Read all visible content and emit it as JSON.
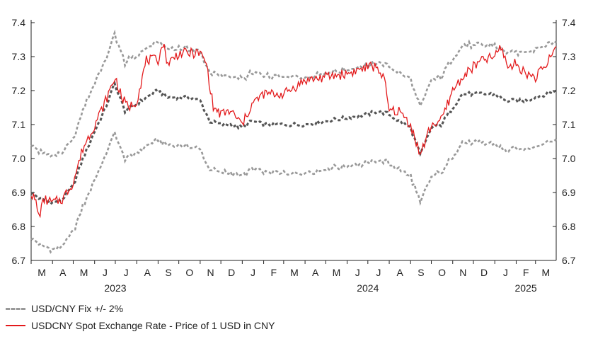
{
  "chart_data": {
    "type": "line",
    "title": "",
    "xlabel": "",
    "ylabel": "",
    "ylim": [
      6.7,
      7.4
    ],
    "y_ticks": [
      "6.7",
      "6.8",
      "6.9",
      "7.0",
      "7.1",
      "7.2",
      "7.3",
      "7.4"
    ],
    "x_range": [
      "2023-03-01",
      "2025-03-31"
    ],
    "month_labels": [
      "M",
      "A",
      "M",
      "J",
      "J",
      "A",
      "S",
      "O",
      "N",
      "D",
      "J",
      "F",
      "M",
      "A",
      "M",
      "J",
      "J",
      "A",
      "S",
      "O",
      "N",
      "D",
      "J",
      "F",
      "M"
    ],
    "year_labels": [
      {
        "label": "2023",
        "anchor": "2023-07-01"
      },
      {
        "label": "2024",
        "anchor": "2024-07-01"
      },
      {
        "label": "2025",
        "anchor": "2025-02-15"
      }
    ],
    "legend_position": "bottom-left",
    "grid": false,
    "series": [
      {
        "name": "USD/CNY Fix +/- 2%",
        "role": "band",
        "color": "#999999",
        "style": "dashed",
        "fix": [
          [
            "2023-03-01",
            6.9
          ],
          [
            "2023-03-15",
            6.88
          ],
          [
            "2023-04-01",
            6.87
          ],
          [
            "2023-04-15",
            6.88
          ],
          [
            "2023-05-01",
            6.92
          ],
          [
            "2023-05-15",
            7.0
          ],
          [
            "2023-06-01",
            7.08
          ],
          [
            "2023-06-15",
            7.14
          ],
          [
            "2023-06-30",
            7.22
          ],
          [
            "2023-07-15",
            7.14
          ],
          [
            "2023-08-01",
            7.16
          ],
          [
            "2023-08-15",
            7.18
          ],
          [
            "2023-09-01",
            7.2
          ],
          [
            "2023-09-15",
            7.18
          ],
          [
            "2023-10-01",
            7.18
          ],
          [
            "2023-10-15",
            7.18
          ],
          [
            "2023-11-01",
            7.17
          ],
          [
            "2023-11-15",
            7.11
          ],
          [
            "2023-12-01",
            7.1
          ],
          [
            "2023-12-15",
            7.1
          ],
          [
            "2024-01-01",
            7.09
          ],
          [
            "2024-01-15",
            7.11
          ],
          [
            "2024-02-01",
            7.1
          ],
          [
            "2024-03-01",
            7.1
          ],
          [
            "2024-04-01",
            7.1
          ],
          [
            "2024-05-01",
            7.11
          ],
          [
            "2024-06-01",
            7.12
          ],
          [
            "2024-07-01",
            7.13
          ],
          [
            "2024-07-15",
            7.14
          ],
          [
            "2024-08-01",
            7.13
          ],
          [
            "2024-08-15",
            7.11
          ],
          [
            "2024-09-01",
            7.09
          ],
          [
            "2024-09-15",
            7.01
          ],
          [
            "2024-10-01",
            7.09
          ],
          [
            "2024-10-15",
            7.1
          ],
          [
            "2024-11-01",
            7.15
          ],
          [
            "2024-11-15",
            7.19
          ],
          [
            "2024-12-01",
            7.19
          ],
          [
            "2024-12-15",
            7.19
          ],
          [
            "2025-01-01",
            7.19
          ],
          [
            "2025-01-15",
            7.17
          ],
          [
            "2025-02-01",
            7.17
          ],
          [
            "2025-02-15",
            7.17
          ],
          [
            "2025-03-01",
            7.18
          ],
          [
            "2025-03-31",
            7.2
          ]
        ]
      },
      {
        "name": "USDCNY Spot Exchange Rate - Price of 1 USD in CNY",
        "role": "spot",
        "color": "#e31a1c",
        "style": "solid",
        "points": [
          [
            "2023-03-01",
            6.9
          ],
          [
            "2023-03-08",
            6.87
          ],
          [
            "2023-03-12",
            6.83
          ],
          [
            "2023-03-20",
            6.88
          ],
          [
            "2023-04-01",
            6.87
          ],
          [
            "2023-04-15",
            6.88
          ],
          [
            "2023-05-01",
            6.93
          ],
          [
            "2023-05-15",
            7.03
          ],
          [
            "2023-06-01",
            7.1
          ],
          [
            "2023-06-15",
            7.16
          ],
          [
            "2023-07-01",
            7.24
          ],
          [
            "2023-07-10",
            7.18
          ],
          [
            "2023-07-20",
            7.15
          ],
          [
            "2023-08-01",
            7.17
          ],
          [
            "2023-08-15",
            7.29
          ],
          [
            "2023-09-01",
            7.29
          ],
          [
            "2023-09-08",
            7.34
          ],
          [
            "2023-09-15",
            7.28
          ],
          [
            "2023-10-01",
            7.31
          ],
          [
            "2023-10-15",
            7.31
          ],
          [
            "2023-11-01",
            7.31
          ],
          [
            "2023-11-10",
            7.28
          ],
          [
            "2023-11-20",
            7.15
          ],
          [
            "2023-12-01",
            7.13
          ],
          [
            "2023-12-15",
            7.14
          ],
          [
            "2024-01-01",
            7.1
          ],
          [
            "2024-01-15",
            7.16
          ],
          [
            "2024-02-01",
            7.19
          ],
          [
            "2024-03-01",
            7.19
          ],
          [
            "2024-04-01",
            7.23
          ],
          [
            "2024-05-01",
            7.24
          ],
          [
            "2024-06-01",
            7.25
          ],
          [
            "2024-07-01",
            7.27
          ],
          [
            "2024-07-15",
            7.27
          ],
          [
            "2024-07-25",
            7.23
          ],
          [
            "2024-08-01",
            7.14
          ],
          [
            "2024-08-15",
            7.14
          ],
          [
            "2024-09-01",
            7.1
          ],
          [
            "2024-09-15",
            7.01
          ],
          [
            "2024-10-01",
            7.1
          ],
          [
            "2024-10-15",
            7.11
          ],
          [
            "2024-11-01",
            7.2
          ],
          [
            "2024-11-15",
            7.24
          ],
          [
            "2024-12-01",
            7.27
          ],
          [
            "2024-12-15",
            7.29
          ],
          [
            "2025-01-01",
            7.3
          ],
          [
            "2025-01-10",
            7.33
          ],
          [
            "2025-01-20",
            7.27
          ],
          [
            "2025-02-01",
            7.28
          ],
          [
            "2025-02-15",
            7.25
          ],
          [
            "2025-03-01",
            7.24
          ],
          [
            "2025-03-15",
            7.27
          ],
          [
            "2025-03-31",
            7.33
          ]
        ]
      },
      {
        "name": "USD/CNY Fix",
        "role": "fix",
        "color": "#555555",
        "style": "dashed"
      }
    ]
  }
}
